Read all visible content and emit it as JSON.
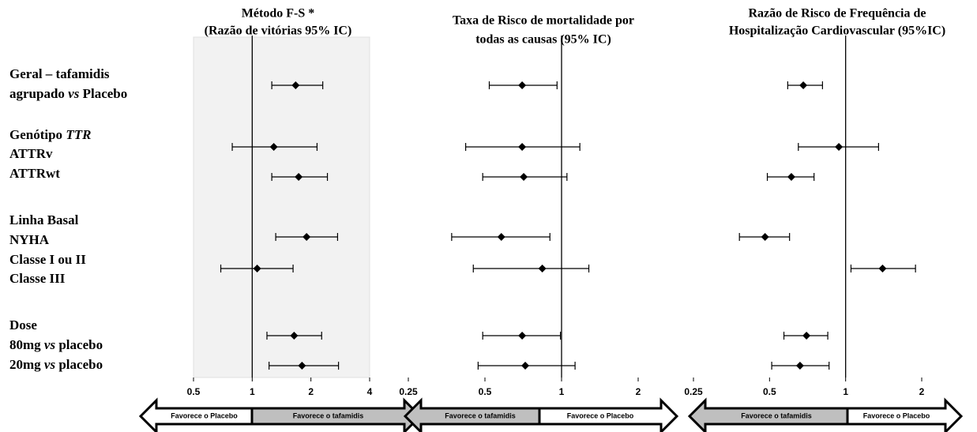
{
  "row_labels": [
    [
      [
        "Geral – tafamidis"
      ],
      [
        "agrupado ",
        "vs",
        " Placebo"
      ]
    ],
    [
      [
        "Genótipo ",
        "TTR"
      ],
      [
        "ATTRv"
      ],
      [
        "ATTRwt"
      ]
    ],
    [
      [
        "Linha Basal"
      ],
      [
        "NYHA"
      ],
      [
        "Classe I ou II"
      ],
      [
        "Classe III"
      ]
    ],
    [
      [
        "Dose"
      ],
      [
        "80mg ",
        "vs",
        " placebo"
      ],
      [
        "20mg ",
        "vs",
        " placebo"
      ]
    ]
  ],
  "chart_data": [
    {
      "type": "forest",
      "title": [
        "Método F-S *",
        "(Razão de vitórias 95% IC)"
      ],
      "xlim": [
        0.5,
        4
      ],
      "xticks": [
        0.5,
        1,
        2,
        4
      ],
      "log_x": true,
      "reference_line": 1,
      "background": "#f2f2f2",
      "estimate": [
        1.67,
        1.29,
        1.73,
        1.9,
        1.06,
        1.64,
        1.8
      ],
      "lower": [
        1.26,
        0.79,
        1.26,
        1.32,
        0.69,
        1.19,
        1.22
      ],
      "upper": [
        2.3,
        2.15,
        2.43,
        2.74,
        1.62,
        2.27,
        2.77
      ],
      "arrow_labels": [
        "Favorece o Placebo",
        "Favorece o tafamidis"
      ],
      "arrow_colors": [
        "#ffffff",
        "#bfbfbf"
      ]
    },
    {
      "type": "forest",
      "title": [
        "Taxa de Risco de mortalidade por",
        "todas as causas (95% IC)"
      ],
      "xlim": [
        0.25,
        2
      ],
      "xticks": [
        0.25,
        0.5,
        1,
        2
      ],
      "log_x": true,
      "reference_line": 1,
      "estimate": [
        0.7,
        0.7,
        0.71,
        0.58,
        0.84,
        0.7,
        0.72
      ],
      "lower": [
        0.52,
        0.42,
        0.49,
        0.37,
        0.45,
        0.49,
        0.47
      ],
      "upper": [
        0.96,
        1.18,
        1.05,
        0.9,
        1.28,
        0.99,
        1.13
      ],
      "arrow_labels": [
        "Favorece o tafamidis",
        "Favorece o Placebo"
      ],
      "arrow_colors": [
        "#bfbfbf",
        "#ffffff"
      ]
    },
    {
      "type": "forest",
      "title": [
        "Razão de Risco de Frequência de",
        "Hospitalização Cardiovascular (95%IC)"
      ],
      "xlim": [
        0.25,
        2
      ],
      "xticks": [
        0.25,
        0.5,
        1,
        2
      ],
      "log_x": true,
      "reference_line": 1,
      "estimate": [
        0.68,
        0.94,
        0.61,
        0.48,
        1.4,
        0.7,
        0.66
      ],
      "lower": [
        0.59,
        0.65,
        0.49,
        0.38,
        1.05,
        0.57,
        0.51
      ],
      "upper": [
        0.81,
        1.35,
        0.75,
        0.6,
        1.89,
        0.85,
        0.86
      ],
      "arrow_labels": [
        "Favorece o tafamidis",
        "Favorece o Placebo"
      ],
      "arrow_colors": [
        "#bfbfbf",
        "#ffffff"
      ]
    }
  ]
}
